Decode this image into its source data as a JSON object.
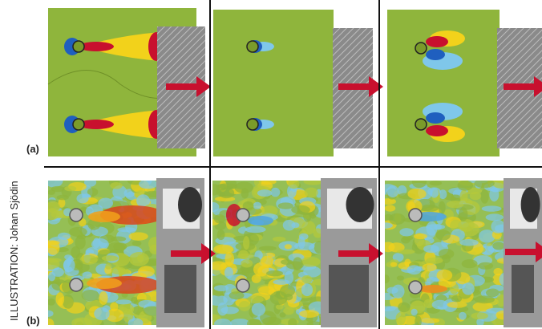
{
  "labels": {
    "a": "(a)",
    "b": "(b)"
  },
  "credit": "ILLUSTRATION: Johan Sjödin"
}
